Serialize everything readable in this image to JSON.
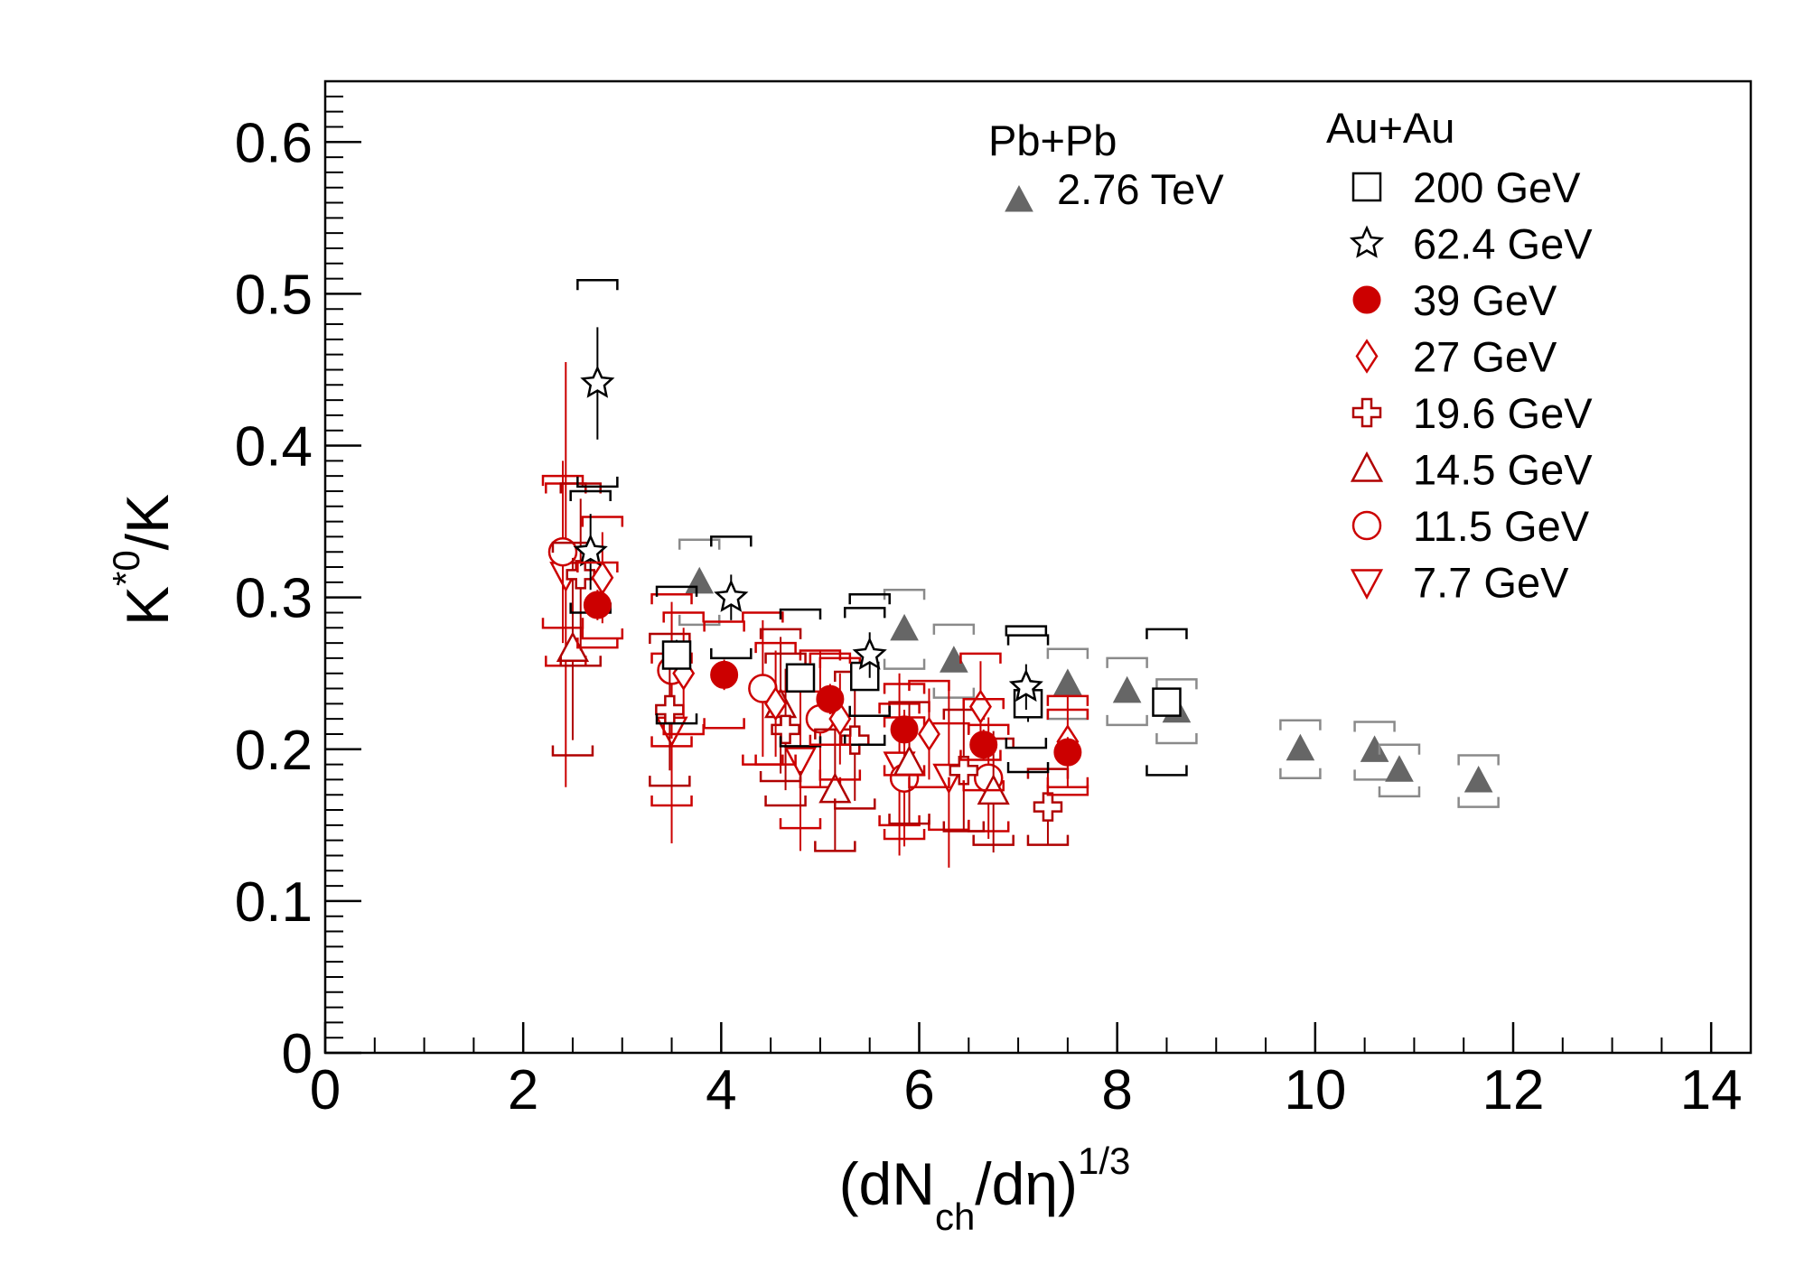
{
  "chart_data": {
    "type": "scatter",
    "xlabel": {
      "main": "(dN",
      "sub": "ch",
      "rest": "/dη)",
      "sup": "1/3"
    },
    "ylabel": {
      "main": "K",
      "sup": "*0",
      "rest": "/K"
    },
    "xlim": [
      0,
      14.4
    ],
    "ylim": [
      0,
      0.64
    ],
    "x_ticks": [
      0,
      2,
      4,
      6,
      8,
      10,
      12,
      14
    ],
    "x_tick_labels": [
      "0",
      "2",
      "4",
      "6",
      "8",
      "10",
      "12",
      "14"
    ],
    "y_ticks": [
      0,
      0.1,
      0.2,
      0.3,
      0.4,
      0.5,
      0.6
    ],
    "y_tick_labels": [
      "0",
      "0.1",
      "0.2",
      "0.3",
      "0.4",
      "0.5",
      "0.6"
    ],
    "legend": {
      "pbpb_header": "Pb+Pb",
      "auau_header": "Au+Au",
      "placement": "top-right"
    },
    "colors": {
      "black": "#000000",
      "gray": "#666666",
      "red": "#cc0000",
      "darkred": "#b00000",
      "gray_sys": "#8a8a8a"
    },
    "series": [
      {
        "name": "2.76 TeV",
        "group": "pbpb",
        "marker": "triangle-filled",
        "color": "#666666",
        "syscolor": "#8a8a8a",
        "points": [
          {
            "x": 3.78,
            "y": 0.31,
            "e": 0,
            "s": 0.028
          },
          {
            "x": 5.85,
            "y": 0.279,
            "e": 0,
            "s": 0.026
          },
          {
            "x": 6.35,
            "y": 0.258,
            "e": 0,
            "s": 0.024
          },
          {
            "x": 7.5,
            "y": 0.243,
            "e": 0,
            "s": 0.023
          },
          {
            "x": 8.1,
            "y": 0.238,
            "e": 0,
            "s": 0.022
          },
          {
            "x": 8.6,
            "y": 0.225,
            "e": 0,
            "s": 0.021
          },
          {
            "x": 9.85,
            "y": 0.2,
            "e": 0,
            "s": 0.019
          },
          {
            "x": 10.6,
            "y": 0.199,
            "e": 0,
            "s": 0.019
          },
          {
            "x": 10.85,
            "y": 0.186,
            "e": 0,
            "s": 0.017
          },
          {
            "x": 11.65,
            "y": 0.179,
            "e": 0,
            "s": 0.017
          }
        ]
      },
      {
        "name": "200 GeV",
        "group": "auau",
        "marker": "square-open",
        "color": "#000000",
        "syscolor": "#000000",
        "points": [
          {
            "x": 3.55,
            "y": 0.262,
            "e": 0.01,
            "s": 0.045
          },
          {
            "x": 4.8,
            "y": 0.247,
            "e": 0.008,
            "s": 0.045
          },
          {
            "x": 5.45,
            "y": 0.248,
            "e": 0.008,
            "s": 0.045
          },
          {
            "x": 7.1,
            "y": 0.23,
            "e": 0.012,
            "s": 0.045
          },
          {
            "x": 8.5,
            "y": 0.231,
            "e": 0.008,
            "s": 0.048
          }
        ]
      },
      {
        "name": "62.4 GeV",
        "group": "auau",
        "marker": "star-open",
        "color": "#000000",
        "syscolor": "#000000",
        "points": [
          {
            "x": 2.75,
            "y": 0.441,
            "e": 0.037,
            "s": 0.068
          },
          {
            "x": 2.68,
            "y": 0.33,
            "e": 0.025,
            "s": 0.04
          },
          {
            "x": 4.1,
            "y": 0.3,
            "e": 0.015,
            "s": 0.04
          },
          {
            "x": 5.5,
            "y": 0.262,
            "e": 0.015,
            "s": 0.04
          },
          {
            "x": 7.08,
            "y": 0.241,
            "e": 0.015,
            "s": 0.04
          }
        ]
      },
      {
        "name": "39 GeV",
        "group": "auau",
        "marker": "circle-filled",
        "color": "#cc0000",
        "syscolor": "#cc0000",
        "points": [
          {
            "x": 2.75,
            "y": 0.295,
            "e": 0.01,
            "s": 0.028
          },
          {
            "x": 4.03,
            "y": 0.249,
            "e": 0.01,
            "s": 0.035
          },
          {
            "x": 5.1,
            "y": 0.233,
            "e": 0.01,
            "s": 0.03
          },
          {
            "x": 5.85,
            "y": 0.213,
            "e": 0.01,
            "s": 0.03
          },
          {
            "x": 6.65,
            "y": 0.203,
            "e": 0.01,
            "s": 0.03
          },
          {
            "x": 7.5,
            "y": 0.198,
            "e": 0.01,
            "s": 0.028
          }
        ]
      },
      {
        "name": "27 GeV",
        "group": "auau",
        "marker": "diamond-open",
        "color": "#cc0000",
        "syscolor": "#cc0000",
        "points": [
          {
            "x": 2.8,
            "y": 0.313,
            "e": 0.03,
            "s": 0.04
          },
          {
            "x": 3.62,
            "y": 0.25,
            "e": 0.03,
            "s": 0.04
          },
          {
            "x": 4.55,
            "y": 0.23,
            "e": 0.035,
            "s": 0.04
          },
          {
            "x": 5.2,
            "y": 0.22,
            "e": 0.03,
            "s": 0.04
          },
          {
            "x": 6.1,
            "y": 0.21,
            "e": 0.03,
            "s": 0.035
          },
          {
            "x": 6.62,
            "y": 0.228,
            "e": 0.03,
            "s": 0.035
          },
          {
            "x": 7.5,
            "y": 0.205,
            "e": 0.03,
            "s": 0.03
          }
        ]
      },
      {
        "name": "19.6 GeV",
        "group": "auau",
        "marker": "cross-open",
        "color": "#b00000",
        "syscolor": "#b00000",
        "points": [
          {
            "x": 2.58,
            "y": 0.315,
            "e": 0.05,
            "s": 0.06
          },
          {
            "x": 3.48,
            "y": 0.226,
            "e": 0.04,
            "s": 0.05
          },
          {
            "x": 4.65,
            "y": 0.213,
            "e": 0.04,
            "s": 0.05
          },
          {
            "x": 5.35,
            "y": 0.206,
            "e": 0.04,
            "s": 0.045
          },
          {
            "x": 6.45,
            "y": 0.186,
            "e": 0.04,
            "s": 0.04
          },
          {
            "x": 7.3,
            "y": 0.162,
            "e": 0.025,
            "s": 0.025
          }
        ]
      },
      {
        "name": "14.5 GeV",
        "group": "auau",
        "marker": "triangle-open",
        "color": "#b00000",
        "syscolor": "#b00000",
        "points": [
          {
            "x": 2.5,
            "y": 0.266,
            "e": 0.06,
            "s": 0.07
          },
          {
            "x": 4.6,
            "y": 0.229,
            "e": 0.045,
            "s": 0.05
          },
          {
            "x": 5.15,
            "y": 0.173,
            "e": 0.04,
            "s": 0.04
          },
          {
            "x": 5.9,
            "y": 0.191,
            "e": 0.04,
            "s": 0.04
          },
          {
            "x": 6.75,
            "y": 0.172,
            "e": 0.04,
            "s": 0.035
          }
        ]
      },
      {
        "name": "11.5 GeV",
        "group": "auau",
        "marker": "circle-open",
        "color": "#cc0000",
        "syscolor": "#cc0000",
        "points": [
          {
            "x": 2.4,
            "y": 0.33,
            "e": 0.06,
            "s": 0.05
          },
          {
            "x": 3.5,
            "y": 0.252,
            "e": 0.045,
            "s": 0.05
          },
          {
            "x": 4.42,
            "y": 0.24,
            "e": 0.045,
            "s": 0.05
          },
          {
            "x": 5.0,
            "y": 0.22,
            "e": 0.045,
            "s": 0.045
          },
          {
            "x": 5.85,
            "y": 0.181,
            "e": 0.045,
            "s": 0.04
          },
          {
            "x": 6.7,
            "y": 0.181,
            "e": 0.04,
            "s": 0.035
          }
        ]
      },
      {
        "name": "7.7 GeV",
        "group": "auau",
        "marker": "triangle-down-open",
        "color": "#cc0000",
        "syscolor": "#cc0000",
        "points": [
          {
            "x": 2.43,
            "y": 0.315,
            "e": 0.14,
            "s": 0.06
          },
          {
            "x": 3.5,
            "y": 0.213,
            "e": 0.075,
            "s": 0.05
          },
          {
            "x": 4.8,
            "y": 0.193,
            "e": 0.06,
            "s": 0.045
          },
          {
            "x": 5.8,
            "y": 0.19,
            "e": 0.06,
            "s": 0.04
          },
          {
            "x": 6.3,
            "y": 0.182,
            "e": 0.06,
            "s": 0.035
          }
        ]
      }
    ]
  }
}
